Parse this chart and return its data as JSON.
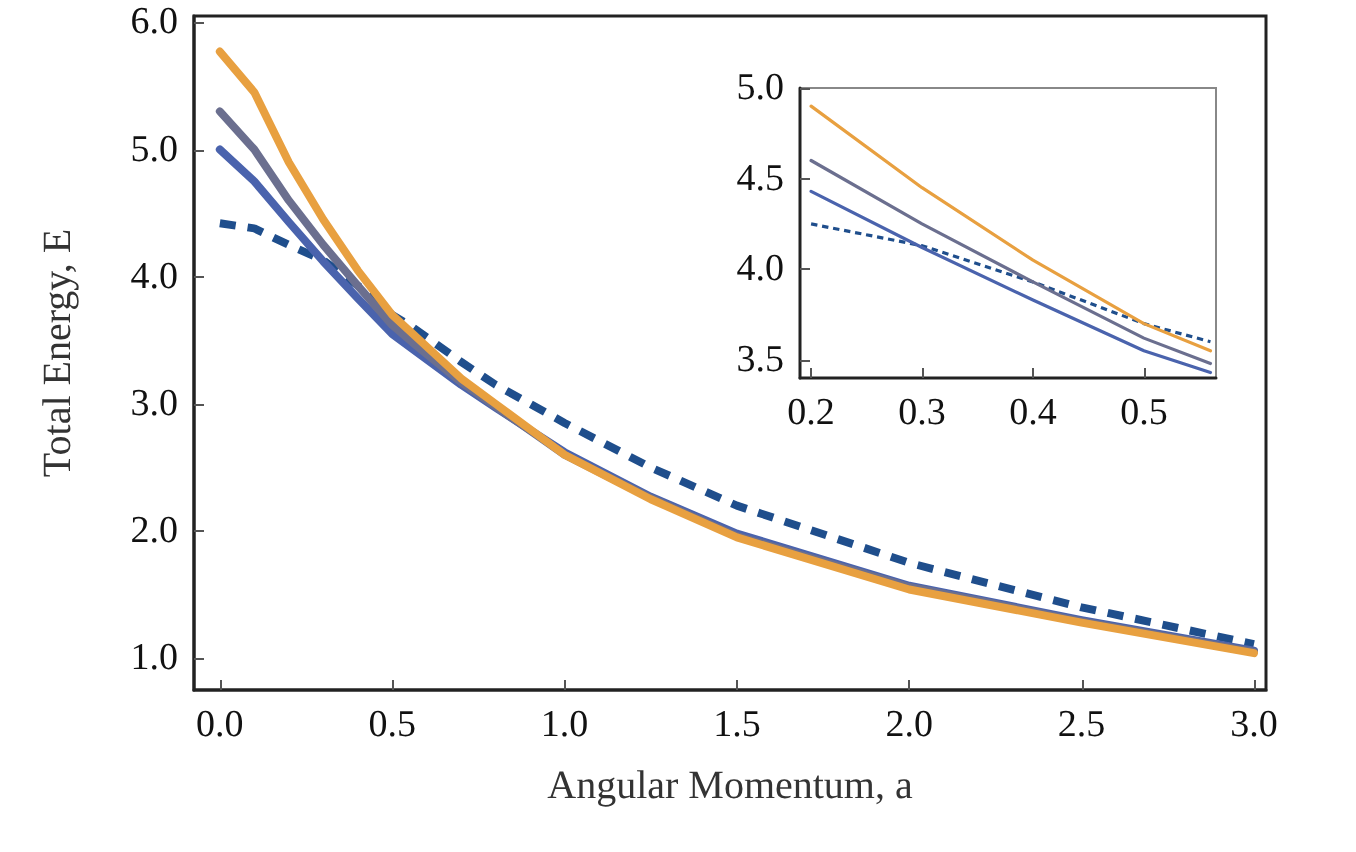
{
  "chart_data": [
    {
      "type": "line",
      "xlabel": "Angular Momentum, a",
      "ylabel": "Total Energy, E",
      "xlim": [
        -0.075,
        3.035
      ],
      "ylim": [
        0.75,
        6.05
      ],
      "xticks": [
        {
          "value": 0,
          "label": "0.0"
        },
        0.5,
        {
          "value": 1,
          "label": "1.0"
        },
        1.5,
        {
          "value": 2,
          "label": "2.0"
        },
        2.5,
        {
          "value": 3,
          "label": "3.0"
        }
      ],
      "yticks": [
        {
          "value": 1,
          "label": "1.0"
        },
        {
          "value": 2,
          "label": "2.0"
        },
        {
          "value": 3,
          "label": "3.0"
        },
        {
          "value": 4,
          "label": "4.0"
        },
        {
          "value": 5,
          "label": "5.0"
        },
        {
          "value": 6,
          "label": "6.0"
        }
      ],
      "grid": false,
      "marker": "none",
      "x": [
        0,
        0.1,
        0.2,
        0.3,
        0.4,
        0.5,
        0.56,
        0.7,
        0.8,
        1.0,
        1.25,
        1.5,
        2.0,
        2.5,
        3.0
      ],
      "series": [
        {
          "color": "#1f4e8c",
          "line_style": "dashed",
          "values": [
            4.42,
            4.38,
            4.25,
            4.13,
            3.93,
            3.7,
            3.6,
            3.33,
            3.15,
            2.85,
            2.5,
            2.2,
            1.75,
            1.4,
            1.11
          ]
        },
        {
          "color": "#4a63ad",
          "line_style": "solid",
          "values": [
            5.0,
            4.75,
            4.43,
            4.12,
            3.83,
            3.55,
            3.43,
            3.15,
            2.97,
            2.62,
            2.27,
            1.98,
            1.57,
            1.3,
            1.06
          ]
        },
        {
          "color": "#6b6f8f",
          "line_style": "solid",
          "values": [
            5.3,
            5.0,
            4.6,
            4.25,
            3.93,
            3.62,
            3.48,
            3.17,
            2.98,
            2.6,
            2.26,
            1.96,
            1.56,
            1.29,
            1.05
          ]
        },
        {
          "color": "#e8a040",
          "line_style": "solid",
          "values": [
            5.77,
            5.45,
            4.9,
            4.45,
            4.05,
            3.7,
            3.55,
            3.2,
            3.0,
            2.6,
            2.25,
            1.95,
            1.54,
            1.28,
            1.04
          ]
        }
      ]
    },
    {
      "type": "line",
      "xlim": [
        0.19,
        0.565
      ],
      "ylim": [
        3.4,
        5.0
      ],
      "xticks": [
        0.2,
        0.3,
        0.4,
        0.5
      ],
      "yticks": [
        {
          "value": 3.5,
          "label": "3.5"
        },
        {
          "value": 4,
          "label": "4.0"
        },
        4.5,
        {
          "value": 5,
          "label": "5.0"
        }
      ],
      "grid": false,
      "marker": "none",
      "x": [
        0.2,
        0.3,
        0.4,
        0.5,
        0.56
      ],
      "series": [
        {
          "color": "#1f4e8c",
          "line_style": "dashed",
          "values": [
            4.25,
            4.13,
            3.93,
            3.7,
            3.6
          ]
        },
        {
          "color": "#4a63ad",
          "line_style": "solid",
          "values": [
            4.43,
            4.12,
            3.83,
            3.55,
            3.43
          ]
        },
        {
          "color": "#6b6f8f",
          "line_style": "solid",
          "values": [
            4.6,
            4.25,
            3.93,
            3.62,
            3.48
          ]
        },
        {
          "color": "#e8a040",
          "line_style": "solid",
          "values": [
            4.9,
            4.45,
            4.05,
            3.7,
            3.55
          ]
        }
      ]
    }
  ]
}
